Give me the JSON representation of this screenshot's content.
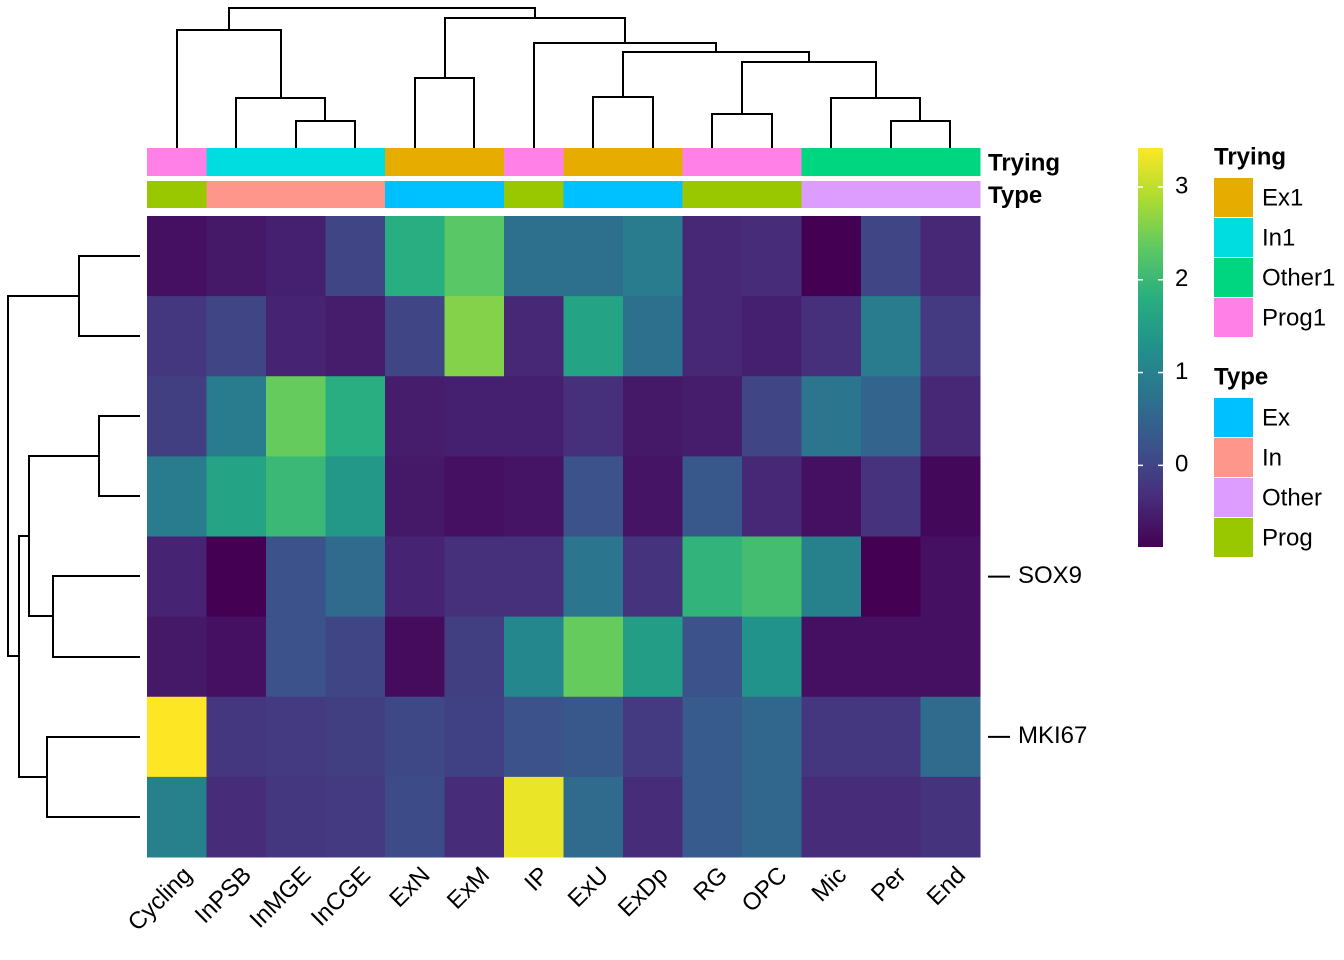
{
  "chart_data": {
    "type": "heatmap",
    "columns": [
      "Cycling",
      "InPSB",
      "InMGE",
      "InCGE",
      "ExN",
      "ExM",
      "IP",
      "ExU",
      "ExDp",
      "RG",
      "OPC",
      "Mic",
      "Per",
      "End"
    ],
    "rows": [
      null,
      null,
      null,
      null,
      "SOX9",
      null,
      "MKI67",
      null
    ],
    "values": [
      [
        -0.7,
        -0.6,
        -0.5,
        0.0,
        1.8,
        2.3,
        0.7,
        0.7,
        0.9,
        -0.4,
        -0.35,
        -0.88,
        0.0,
        -0.4
      ],
      [
        -0.2,
        0.0,
        -0.45,
        -0.55,
        0.0,
        2.6,
        -0.4,
        1.6,
        0.7,
        -0.4,
        -0.5,
        -0.3,
        0.9,
        -0.15
      ],
      [
        -0.1,
        0.9,
        2.4,
        1.8,
        -0.55,
        -0.5,
        -0.5,
        -0.3,
        -0.6,
        -0.55,
        0.0,
        0.8,
        0.5,
        -0.4
      ],
      [
        0.9,
        1.6,
        2.0,
        1.4,
        -0.6,
        -0.7,
        -0.65,
        0.2,
        -0.65,
        0.3,
        -0.4,
        -0.7,
        -0.25,
        -0.8
      ],
      [
        -0.45,
        -0.88,
        0.2,
        0.6,
        -0.45,
        -0.3,
        -0.3,
        0.8,
        -0.25,
        1.9,
        2.1,
        1.0,
        -0.88,
        -0.7
      ],
      [
        -0.6,
        -0.7,
        0.2,
        0.0,
        -0.75,
        -0.1,
        1.1,
        2.4,
        1.5,
        0.2,
        1.3,
        -0.7,
        -0.7,
        -0.7
      ],
      [
        3.42,
        -0.2,
        -0.15,
        -0.1,
        0.05,
        -0.05,
        0.2,
        0.3,
        -0.15,
        0.35,
        0.55,
        -0.2,
        -0.2,
        0.6
      ],
      [
        1.0,
        -0.35,
        -0.2,
        -0.15,
        0.1,
        -0.35,
        3.3,
        0.6,
        -0.35,
        0.35,
        0.55,
        -0.35,
        -0.35,
        -0.25
      ]
    ],
    "zlim": [
      -0.88,
      3.42
    ],
    "zticks": [
      0,
      1,
      2,
      3
    ],
    "colorscale": [
      "#440154",
      "#472d7b",
      "#3b528b",
      "#2c728e",
      "#21918c",
      "#28ae80",
      "#5ec962",
      "#addc30",
      "#fde725"
    ],
    "annotations": [
      {
        "name": "Trying",
        "values": [
          "Prog1",
          "In1",
          "In1",
          "In1",
          "Ex1",
          "Ex1",
          "Prog1",
          "Ex1",
          "Ex1",
          "Prog1",
          "Prog1",
          "Other1",
          "Other1",
          "Other1"
        ],
        "levels": [
          {
            "name": "Ex1",
            "color": "#e6ad00"
          },
          {
            "name": "In1",
            "color": "#00dde1"
          },
          {
            "name": "Other1",
            "color": "#00d580"
          },
          {
            "name": "Prog1",
            "color": "#ff80e6"
          }
        ]
      },
      {
        "name": "Type",
        "values": [
          "Prog",
          "In",
          "In",
          "In",
          "Ex",
          "Ex",
          "Prog",
          "Ex",
          "Ex",
          "Prog",
          "Prog",
          "Other",
          "Other",
          "Other"
        ],
        "levels": [
          {
            "name": "Ex",
            "color": "#00c1ff"
          },
          {
            "name": "In",
            "color": "#ff968c"
          },
          {
            "name": "Other",
            "color": "#dc9dff"
          },
          {
            "name": "Prog",
            "color": "#9ac800"
          }
        ]
      }
    ]
  }
}
